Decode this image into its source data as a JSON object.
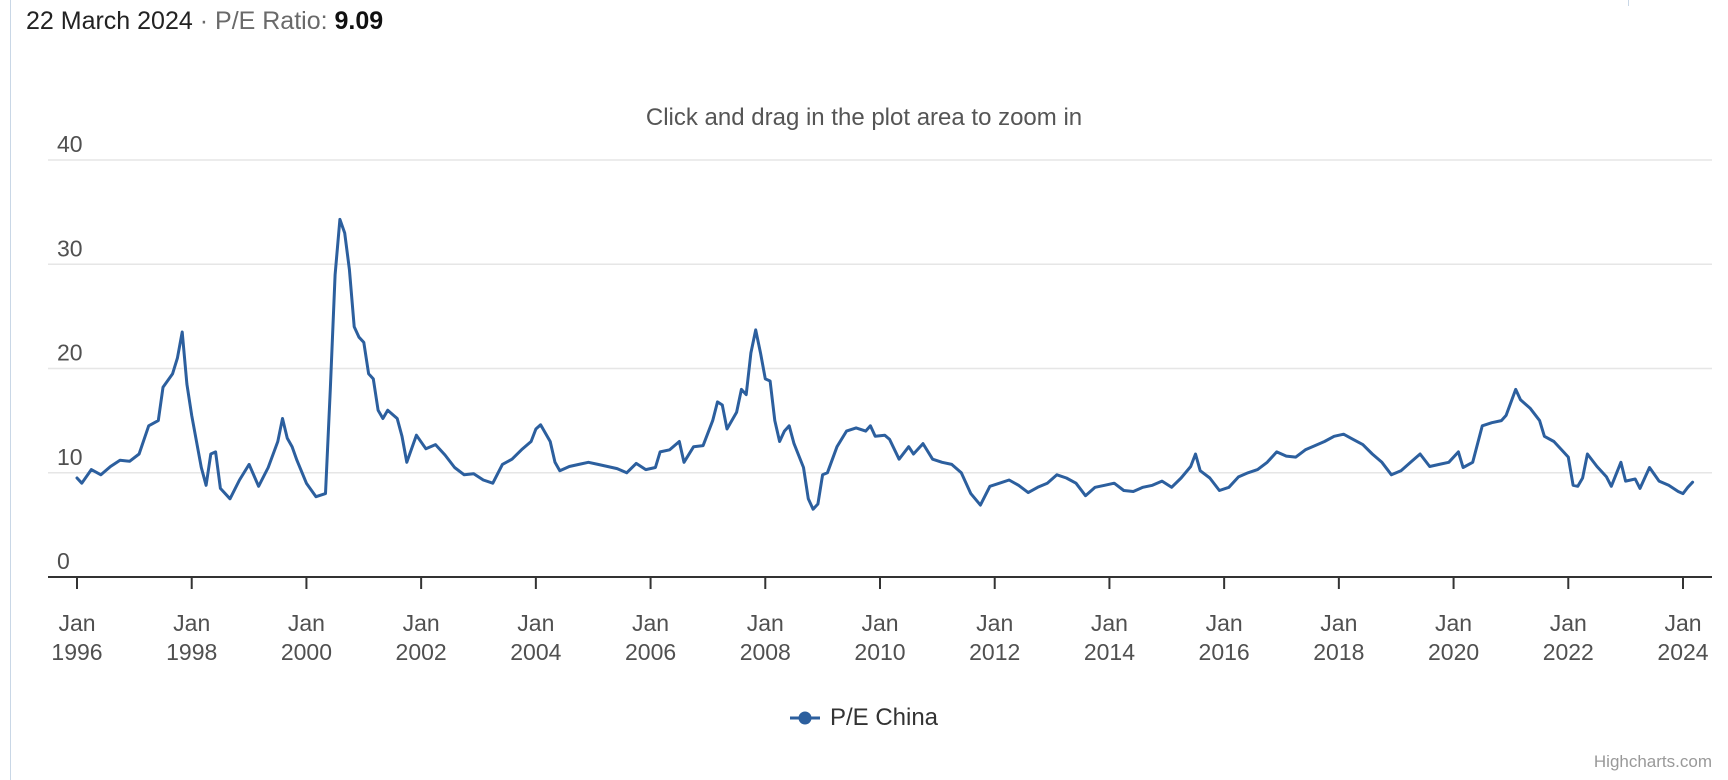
{
  "header": {
    "date": "22 March 2024",
    "separator": "·",
    "metric_label": "P/E Ratio:",
    "metric_value": "9.09"
  },
  "zoom_hint": "Click and drag in the plot area to zoom in",
  "legend": {
    "label": "P/E China"
  },
  "credits": "Highcharts.com",
  "colors": {
    "series": "#2c5f9e",
    "grid": "#e6e6e6",
    "axis": "#333333"
  },
  "chart_data": {
    "type": "line",
    "title": "",
    "xlabel": "",
    "ylabel": "",
    "ylim": [
      0,
      40
    ],
    "yticks": [
      "0",
      "10",
      "20",
      "30",
      "40"
    ],
    "xticks": [
      {
        "year": 1996,
        "month": "Jan",
        "label": "1996"
      },
      {
        "year": 1998,
        "month": "Jan",
        "label": "1998"
      },
      {
        "year": 2000,
        "month": "Jan",
        "label": "2000"
      },
      {
        "year": 2002,
        "month": "Jan",
        "label": "2002"
      },
      {
        "year": 2004,
        "month": "Jan",
        "label": "2004"
      },
      {
        "year": 2006,
        "month": "Jan",
        "label": "2006"
      },
      {
        "year": 2008,
        "month": "Jan",
        "label": "2008"
      },
      {
        "year": 2010,
        "month": "Jan",
        "label": "2010"
      },
      {
        "year": 2012,
        "month": "Jan",
        "label": "2012"
      },
      {
        "year": 2014,
        "month": "Jan",
        "label": "2014"
      },
      {
        "year": 2016,
        "month": "Jan",
        "label": "2016"
      },
      {
        "year": 2018,
        "month": "Jan",
        "label": "2018"
      },
      {
        "year": 2020,
        "month": "Jan",
        "label": "2020"
      },
      {
        "year": 2022,
        "month": "Jan",
        "label": "2022"
      },
      {
        "year": 2024,
        "month": "Jan",
        "label": "2024"
      }
    ],
    "grid": true,
    "legend_position": "bottom-center",
    "series": [
      {
        "name": "P/E China",
        "points": [
          [
            "1996-01",
            9.5
          ],
          [
            "1996-02",
            9.0
          ],
          [
            "1996-04",
            10.3
          ],
          [
            "1996-06",
            9.8
          ],
          [
            "1996-08",
            10.6
          ],
          [
            "1996-10",
            11.2
          ],
          [
            "1996-12",
            11.1
          ],
          [
            "1997-02",
            11.8
          ],
          [
            "1997-04",
            14.5
          ],
          [
            "1997-06",
            15.0
          ],
          [
            "1997-07",
            18.2
          ],
          [
            "1997-09",
            19.5
          ],
          [
            "1997-10",
            21.0
          ],
          [
            "1997-11",
            23.5
          ],
          [
            "1997-12",
            18.5
          ],
          [
            "1998-01",
            15.5
          ],
          [
            "1998-02",
            13.0
          ],
          [
            "1998-03",
            10.5
          ],
          [
            "1998-04",
            8.8
          ],
          [
            "1998-05",
            11.8
          ],
          [
            "1998-06",
            12.0
          ],
          [
            "1998-07",
            8.5
          ],
          [
            "1998-09",
            7.5
          ],
          [
            "1998-11",
            9.3
          ],
          [
            "1999-01",
            10.8
          ],
          [
            "1999-03",
            8.7
          ],
          [
            "1999-05",
            10.5
          ],
          [
            "1999-07",
            13.0
          ],
          [
            "1999-08",
            15.2
          ],
          [
            "1999-09",
            13.3
          ],
          [
            "1999-10",
            12.5
          ],
          [
            "1999-11",
            11.2
          ],
          [
            "2000-01",
            9.0
          ],
          [
            "2000-03",
            7.7
          ],
          [
            "2000-05",
            8.0
          ],
          [
            "2000-06",
            18.0
          ],
          [
            "2000-07",
            29.0
          ],
          [
            "2000-08",
            34.3
          ],
          [
            "2000-09",
            33.0
          ],
          [
            "2000-10",
            29.5
          ],
          [
            "2000-11",
            24.0
          ],
          [
            "2000-12",
            23.0
          ],
          [
            "2001-01",
            22.5
          ],
          [
            "2001-02",
            19.5
          ],
          [
            "2001-03",
            19.0
          ],
          [
            "2001-04",
            16.0
          ],
          [
            "2001-05",
            15.2
          ],
          [
            "2001-06",
            16.0
          ],
          [
            "2001-08",
            15.2
          ],
          [
            "2001-09",
            13.5
          ],
          [
            "2001-10",
            11.0
          ],
          [
            "2001-12",
            13.6
          ],
          [
            "2002-02",
            12.3
          ],
          [
            "2002-04",
            12.7
          ],
          [
            "2002-06",
            11.7
          ],
          [
            "2002-08",
            10.5
          ],
          [
            "2002-10",
            9.8
          ],
          [
            "2002-12",
            9.9
          ],
          [
            "2003-02",
            9.3
          ],
          [
            "2003-04",
            9.0
          ],
          [
            "2003-06",
            10.8
          ],
          [
            "2003-08",
            11.3
          ],
          [
            "2003-10",
            12.2
          ],
          [
            "2003-12",
            13.0
          ],
          [
            "2004-01",
            14.2
          ],
          [
            "2004-02",
            14.6
          ],
          [
            "2004-04",
            13.0
          ],
          [
            "2004-05",
            11.0
          ],
          [
            "2004-06",
            10.2
          ],
          [
            "2004-08",
            10.6
          ],
          [
            "2004-10",
            10.8
          ],
          [
            "2004-12",
            11.0
          ],
          [
            "2005-02",
            10.8
          ],
          [
            "2005-04",
            10.6
          ],
          [
            "2005-06",
            10.4
          ],
          [
            "2005-08",
            10.0
          ],
          [
            "2005-10",
            10.9
          ],
          [
            "2005-12",
            10.3
          ],
          [
            "2006-02",
            10.5
          ],
          [
            "2006-03",
            12.0
          ],
          [
            "2006-05",
            12.2
          ],
          [
            "2006-07",
            13.0
          ],
          [
            "2006-08",
            11.0
          ],
          [
            "2006-10",
            12.5
          ],
          [
            "2006-12",
            12.6
          ],
          [
            "2007-02",
            15.0
          ],
          [
            "2007-03",
            16.8
          ],
          [
            "2007-04",
            16.5
          ],
          [
            "2007-05",
            14.2
          ],
          [
            "2007-07",
            15.8
          ],
          [
            "2007-08",
            18.0
          ],
          [
            "2007-09",
            17.5
          ],
          [
            "2007-10",
            21.5
          ],
          [
            "2007-11",
            23.7
          ],
          [
            "2007-12",
            21.5
          ],
          [
            "2008-01",
            19.0
          ],
          [
            "2008-02",
            18.8
          ],
          [
            "2008-03",
            15.0
          ],
          [
            "2008-04",
            13.0
          ],
          [
            "2008-05",
            14.0
          ],
          [
            "2008-06",
            14.5
          ],
          [
            "2008-07",
            12.8
          ],
          [
            "2008-09",
            10.5
          ],
          [
            "2008-10",
            7.5
          ],
          [
            "2008-11",
            6.5
          ],
          [
            "2008-12",
            7.0
          ],
          [
            "2009-01",
            9.8
          ],
          [
            "2009-02",
            10.0
          ],
          [
            "2009-04",
            12.5
          ],
          [
            "2009-06",
            14.0
          ],
          [
            "2009-08",
            14.3
          ],
          [
            "2009-10",
            14.0
          ],
          [
            "2009-11",
            14.5
          ],
          [
            "2009-12",
            13.5
          ],
          [
            "2010-02",
            13.6
          ],
          [
            "2010-03",
            13.2
          ],
          [
            "2010-05",
            11.3
          ],
          [
            "2010-07",
            12.5
          ],
          [
            "2010-08",
            11.8
          ],
          [
            "2010-10",
            12.8
          ],
          [
            "2010-12",
            11.3
          ],
          [
            "2011-02",
            11.0
          ],
          [
            "2011-04",
            10.8
          ],
          [
            "2011-06",
            10.0
          ],
          [
            "2011-08",
            8.0
          ],
          [
            "2011-10",
            6.9
          ],
          [
            "2011-12",
            8.7
          ],
          [
            "2012-02",
            9.0
          ],
          [
            "2012-04",
            9.3
          ],
          [
            "2012-06",
            8.8
          ],
          [
            "2012-08",
            8.1
          ],
          [
            "2012-10",
            8.6
          ],
          [
            "2012-12",
            9.0
          ],
          [
            "2013-02",
            9.8
          ],
          [
            "2013-04",
            9.5
          ],
          [
            "2013-06",
            9.0
          ],
          [
            "2013-08",
            7.8
          ],
          [
            "2013-10",
            8.6
          ],
          [
            "2013-12",
            8.8
          ],
          [
            "2014-02",
            9.0
          ],
          [
            "2014-04",
            8.3
          ],
          [
            "2014-06",
            8.2
          ],
          [
            "2014-08",
            8.6
          ],
          [
            "2014-10",
            8.8
          ],
          [
            "2014-12",
            9.2
          ],
          [
            "2015-02",
            8.6
          ],
          [
            "2015-04",
            9.5
          ],
          [
            "2015-06",
            10.6
          ],
          [
            "2015-07",
            11.8
          ],
          [
            "2015-08",
            10.2
          ],
          [
            "2015-10",
            9.5
          ],
          [
            "2015-12",
            8.3
          ],
          [
            "2016-02",
            8.6
          ],
          [
            "2016-04",
            9.6
          ],
          [
            "2016-06",
            10.0
          ],
          [
            "2016-08",
            10.3
          ],
          [
            "2016-10",
            11.0
          ],
          [
            "2016-12",
            12.0
          ],
          [
            "2017-02",
            11.6
          ],
          [
            "2017-04",
            11.5
          ],
          [
            "2017-06",
            12.2
          ],
          [
            "2017-08",
            12.6
          ],
          [
            "2017-10",
            13.0
          ],
          [
            "2017-12",
            13.5
          ],
          [
            "2018-02",
            13.7
          ],
          [
            "2018-04",
            13.2
          ],
          [
            "2018-06",
            12.7
          ],
          [
            "2018-08",
            11.8
          ],
          [
            "2018-10",
            11.0
          ],
          [
            "2018-12",
            9.8
          ],
          [
            "2019-02",
            10.2
          ],
          [
            "2019-04",
            11.0
          ],
          [
            "2019-06",
            11.8
          ],
          [
            "2019-08",
            10.6
          ],
          [
            "2019-10",
            10.8
          ],
          [
            "2019-12",
            11.0
          ],
          [
            "2020-02",
            12.0
          ],
          [
            "2020-03",
            10.5
          ],
          [
            "2020-05",
            11.0
          ],
          [
            "2020-07",
            14.5
          ],
          [
            "2020-09",
            14.8
          ],
          [
            "2020-11",
            15.0
          ],
          [
            "2020-12",
            15.5
          ],
          [
            "2021-02",
            18.0
          ],
          [
            "2021-03",
            17.0
          ],
          [
            "2021-05",
            16.2
          ],
          [
            "2021-07",
            15.0
          ],
          [
            "2021-08",
            13.5
          ],
          [
            "2021-10",
            13.0
          ],
          [
            "2021-12",
            12.0
          ],
          [
            "2022-01",
            11.5
          ],
          [
            "2022-02",
            8.8
          ],
          [
            "2022-03",
            8.7
          ],
          [
            "2022-04",
            9.5
          ],
          [
            "2022-05",
            11.8
          ],
          [
            "2022-07",
            10.6
          ],
          [
            "2022-09",
            9.6
          ],
          [
            "2022-10",
            8.7
          ],
          [
            "2022-12",
            11.0
          ],
          [
            "2023-01",
            9.2
          ],
          [
            "2023-03",
            9.4
          ],
          [
            "2023-04",
            8.5
          ],
          [
            "2023-06",
            10.5
          ],
          [
            "2023-08",
            9.2
          ],
          [
            "2023-10",
            8.8
          ],
          [
            "2023-12",
            8.2
          ],
          [
            "2024-01",
            8.0
          ],
          [
            "2024-02",
            8.6
          ],
          [
            "2024-03",
            9.09
          ]
        ]
      }
    ]
  }
}
